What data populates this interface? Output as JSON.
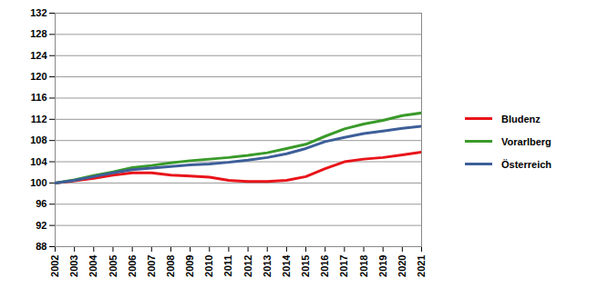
{
  "chart_data": {
    "type": "line",
    "x": [
      2002,
      2003,
      2004,
      2005,
      2006,
      2007,
      2008,
      2009,
      2010,
      2011,
      2012,
      2013,
      2014,
      2015,
      2016,
      2017,
      2018,
      2019,
      2020,
      2021
    ],
    "series": [
      {
        "name": "Bludenz",
        "color": "#e8141a",
        "values": [
          100,
          100.4,
          100.9,
          101.5,
          101.9,
          101.9,
          101.5,
          101.3,
          101.1,
          100.5,
          100.3,
          100.3,
          100.5,
          101.2,
          102.7,
          104.0,
          104.5,
          104.8,
          105.3,
          105.8
        ]
      },
      {
        "name": "Vorarlberg",
        "color": "#3a9a2a",
        "values": [
          100,
          100.6,
          101.4,
          102.1,
          102.9,
          103.3,
          103.8,
          104.2,
          104.5,
          104.8,
          105.2,
          105.7,
          106.5,
          107.3,
          108.8,
          110.2,
          111.1,
          111.8,
          112.7,
          113.2
        ]
      },
      {
        "name": "Österreich",
        "color": "#3d5f99",
        "values": [
          100,
          100.5,
          101.2,
          101.9,
          102.5,
          102.8,
          103.1,
          103.4,
          103.6,
          103.9,
          104.3,
          104.8,
          105.5,
          106.5,
          107.8,
          108.6,
          109.3,
          109.8,
          110.3,
          110.7
        ]
      }
    ],
    "xlim": [
      2002,
      2021
    ],
    "xticks": [
      2002,
      2003,
      2004,
      2005,
      2006,
      2007,
      2008,
      2009,
      2010,
      2011,
      2012,
      2013,
      2014,
      2015,
      2016,
      2017,
      2018,
      2019,
      2020,
      2021
    ],
    "ylim": [
      88,
      132
    ],
    "yticks": [
      88,
      92,
      96,
      100,
      104,
      108,
      112,
      116,
      120,
      124,
      128,
      132
    ],
    "grid": true,
    "legend": "right"
  }
}
